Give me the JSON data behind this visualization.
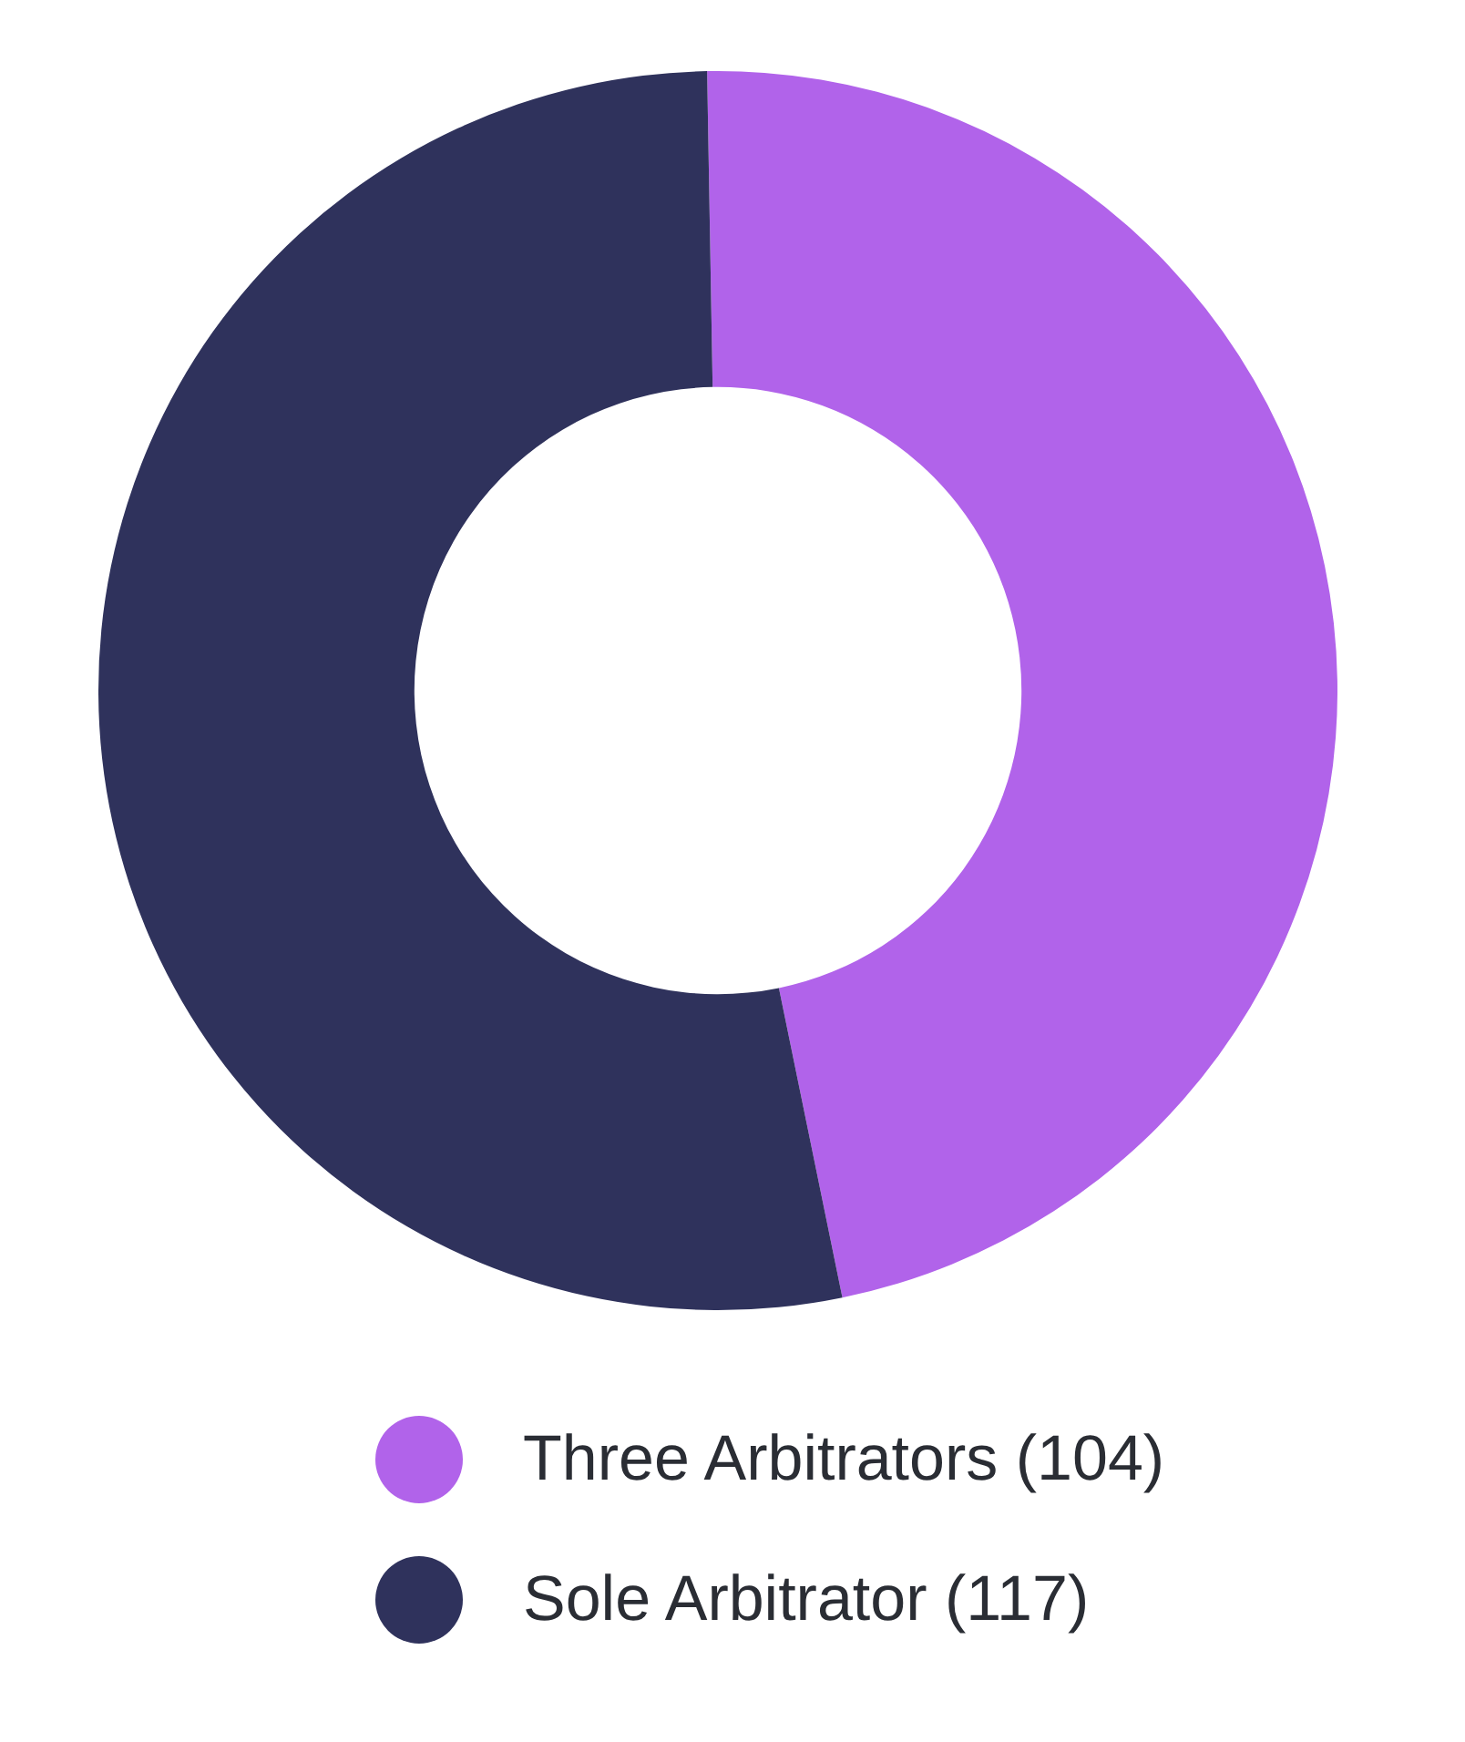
{
  "chart_data": {
    "type": "donut",
    "categories": [
      "Three Arbitrators (104)",
      "Sole Arbitrator (117)"
    ],
    "values": [
      104,
      117
    ],
    "colors": [
      "#b163ea",
      "#2f325c"
    ],
    "legend": "bottom"
  }
}
